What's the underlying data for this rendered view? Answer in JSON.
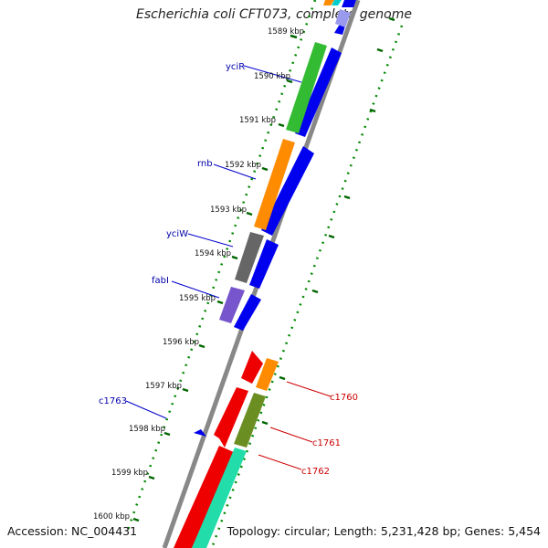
{
  "map": {
    "title": "Escherichia coli CFT073, complete genome",
    "accession": "Accession: NC_004431",
    "topology": "Topology: circular; Length: 5,231,428 bp; Genes: 5,454"
  },
  "ticks": [
    "1589 kbp",
    "1590 kbp",
    "1591 kbp",
    "1592 kbp",
    "1593 kbp",
    "1594 kbp",
    "1595 kbp",
    "1596 kbp",
    "1597 kbp",
    "1598 kbp",
    "1599 kbp",
    "1600 kbp"
  ],
  "gene_labels_blue": [
    "yciR",
    "rnb",
    "yciW",
    "fabI",
    "c1763"
  ],
  "gene_labels_red": [
    "c1760",
    "c1761",
    "c1762"
  ],
  "colors": {
    "blue_label": "#0000aa",
    "red_label": "#cc0000",
    "cds_forward": "#0000ee",
    "cds_reverse_red": "#ee0000",
    "gc_dots": "#008800",
    "backbone": "#888888"
  }
}
